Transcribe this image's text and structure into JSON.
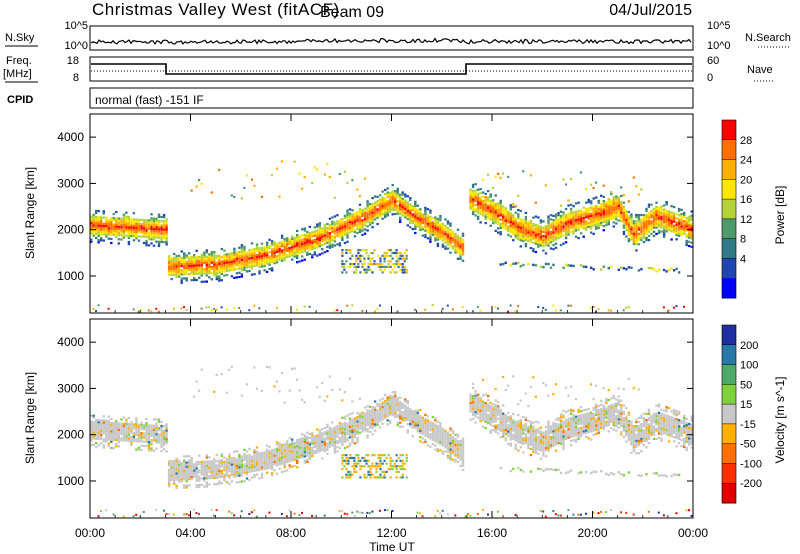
{
  "header": {
    "station": "Christmas Valley West (fitACF)",
    "beam": "Beam 09",
    "date": "04/Jul/2015"
  },
  "top_panels": {
    "nsky": {
      "label": "N.Sky",
      "ticks_left": [
        "10^5",
        "10^0"
      ],
      "ticks_right": [
        "10^5",
        "10^0"
      ],
      "right_label": "N.Search"
    },
    "freq": {
      "label_line1": "Freq.",
      "label_line2": "[MHz]",
      "ticks_left": [
        "18",
        "8"
      ],
      "ticks_right": [
        "60",
        "0"
      ],
      "right_label": "Nave"
    },
    "cpid": {
      "label": "CPID",
      "text": "normal (fast) -151 IF"
    }
  },
  "chart_data": [
    {
      "type": "heatmap",
      "title": "",
      "ylabel": "Slant Range [km]",
      "xlabel": "",
      "x": [
        "00:00",
        "04:00",
        "08:00",
        "12:00",
        "16:00",
        "20:00",
        "00:00"
      ],
      "y_ticks": [
        1000,
        2000,
        3000,
        4000
      ],
      "ylim": [
        200,
        4500
      ],
      "colorbar": {
        "label": "Power [dB]",
        "ticks": [
          "28",
          "24",
          "20",
          "16",
          "12",
          "8",
          "4"
        ],
        "colors": [
          "#ff0000",
          "#ff7000",
          "#ffb000",
          "#ffe600",
          "#b4d23c",
          "#4f9a6a",
          "#2f7a86",
          "#2246b0",
          "#0000ff"
        ]
      },
      "bands": [
        {
          "name": "main",
          "points": [
            [
              0,
              2100
            ],
            [
              1.5,
              2050
            ],
            [
              3,
              2000
            ],
            [
              3.01,
              1200
            ],
            [
              5,
              1250
            ],
            [
              7,
              1450
            ],
            [
              9,
              1800
            ],
            [
              11,
              2300
            ],
            [
              12,
              2650
            ],
            [
              13,
              2250
            ],
            [
              14,
              1950
            ],
            [
              14.8,
              1600
            ]
          ],
          "width": 420,
          "peak": 28
        },
        {
          "name": "second",
          "points": [
            [
              15,
              2700
            ],
            [
              16,
              2400
            ],
            [
              17,
              2050
            ],
            [
              18,
              1850
            ],
            [
              19,
              2150
            ],
            [
              20,
              2300
            ],
            [
              21,
              2500
            ],
            [
              21.6,
              1900
            ],
            [
              22.5,
              2300
            ],
            [
              24,
              2000
            ]
          ],
          "width": 480,
          "peak": 28
        }
      ]
    },
    {
      "type": "heatmap",
      "title": "",
      "ylabel": "Slant Range [km]",
      "xlabel": "Time UT",
      "x": [
        "00:00",
        "04:00",
        "08:00",
        "12:00",
        "16:00",
        "20:00",
        "00:00"
      ],
      "y_ticks": [
        1000,
        2000,
        3000,
        4000
      ],
      "ylim": [
        200,
        4500
      ],
      "colorbar": {
        "label": "Velocity [m s^-1]",
        "ticks": [
          "200",
          "100",
          "50",
          "15",
          "-15",
          "-50",
          "-100",
          "-200"
        ],
        "colors": [
          "#1f2fa0",
          "#2a78a8",
          "#4ea868",
          "#7fd23c",
          "#c8c8c8",
          "#ffb000",
          "#ff7000",
          "#ff3000",
          "#e00000"
        ]
      }
    }
  ]
}
